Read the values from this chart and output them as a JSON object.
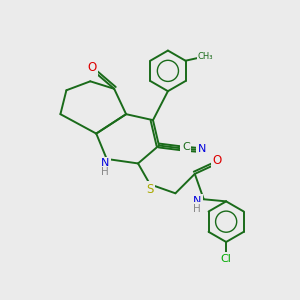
{
  "background_color": "#ebebeb",
  "bond_color": "#1a6b1a",
  "bond_width": 1.4,
  "atom_colors": {
    "C": "#1a6b1a",
    "N": "#0000dd",
    "O": "#dd0000",
    "S": "#aaaa00",
    "Cl": "#00aa00",
    "H": "#888888"
  },
  "font_size": 7.5,
  "figsize": [
    3.0,
    3.0
  ],
  "dpi": 100
}
